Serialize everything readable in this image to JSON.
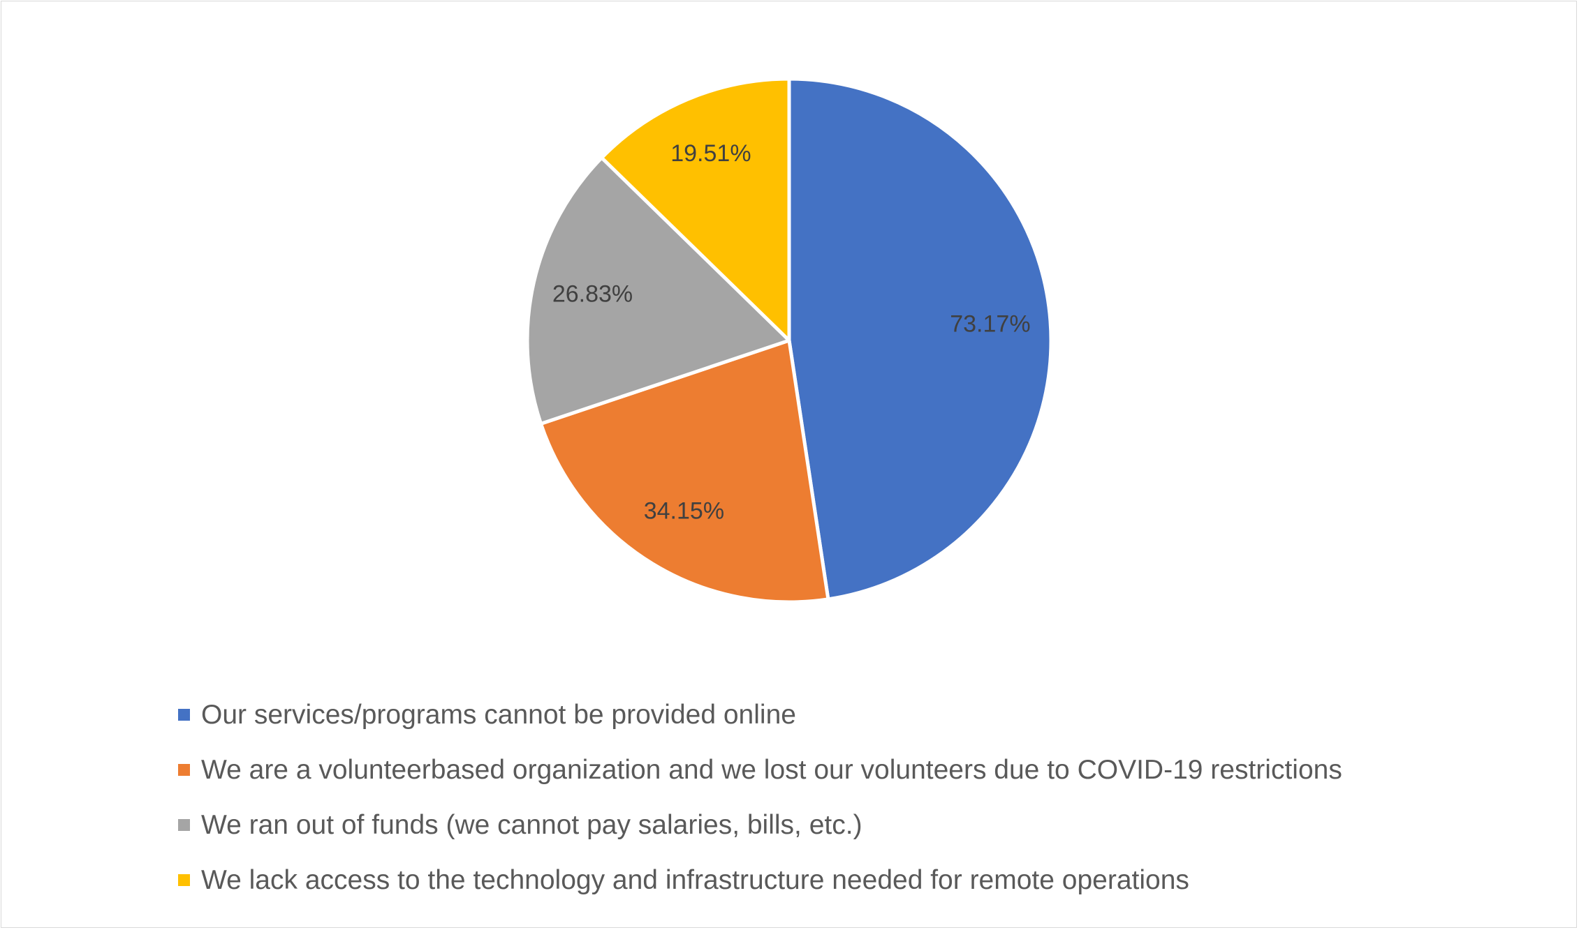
{
  "chart_data": {
    "type": "pie",
    "title": "",
    "categories": [
      "Our services/programs cannot be provided online",
      "We are a volunteerbased organization and we lost our volunteers due to COVID-19 restrictions",
      "We ran out of funds (we cannot pay salaries, bills, etc.)",
      "We lack access to the technology and infrastructure needed for remote operations"
    ],
    "values": [
      73.17,
      34.15,
      26.83,
      19.51
    ],
    "data_labels": [
      "73.17%",
      "34.15%",
      "26.83%",
      "19.51%"
    ],
    "colors": [
      "#4472C4",
      "#ED7D31",
      "#A5A5A5",
      "#FFC000"
    ],
    "legend_position": "bottom",
    "start_angle": "12 o'clock",
    "direction": "clockwise"
  }
}
